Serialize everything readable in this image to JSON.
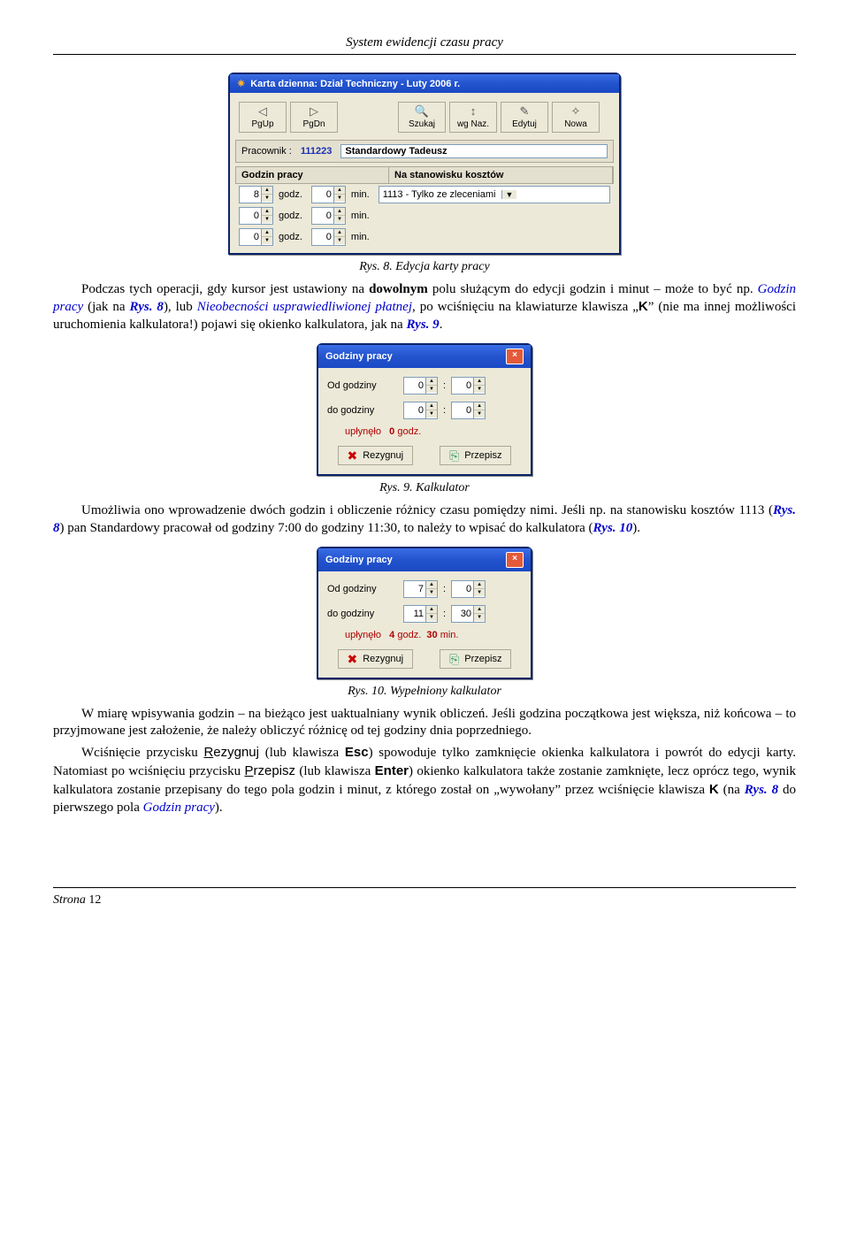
{
  "doc": {
    "header_title": "System ewidencji czasu pracy",
    "footer_label": "Strona",
    "footer_page": "12"
  },
  "fig8": {
    "window_title": "Karta dzienna: Dział Techniczny - Luty 2006 r.",
    "toolbar": [
      {
        "icon": "◁",
        "label": "PgUp"
      },
      {
        "icon": "▷",
        "label": "PgDn"
      },
      {
        "icon": "🔍",
        "label": "Szukaj"
      },
      {
        "icon": "↕",
        "label": "wg Naz."
      },
      {
        "icon": "✎",
        "label": "Edytuj"
      },
      {
        "icon": "✧",
        "label": "Nowa"
      }
    ],
    "worker_label": "Pracownik :",
    "worker_id": "111223",
    "worker_name": "Standardowy Tadeusz",
    "col1": "Godzin pracy",
    "col2": "Na stanowisku kosztów",
    "rows": [
      {
        "h": "8",
        "m": "0",
        "stan": "1113  - Tylko ze zleceniami"
      },
      {
        "h": "0",
        "m": "0",
        "stan": ""
      },
      {
        "h": "0",
        "m": "0",
        "stan": ""
      }
    ],
    "unit_h": "godz.",
    "unit_m": "min.",
    "caption": "Rys. 8. Edycja karty pracy"
  },
  "para1_a": "Podczas tych operacji, gdy kursor jest ustawiony na ",
  "para1_b": "dowolnym",
  "para1_c": " polu służącym do edycji godzin i minut – może to być np. ",
  "para1_d": "Godzin pracy",
  "para1_e": " (jak na ",
  "para1_f": "Rys. 8",
  "para1_g": "), lub ",
  "para1_h": "Nieobecności usprawiedliwionej płatnej",
  "para1_i": ", po wciśnięciu na klawiaturze klawisza „",
  "para1_j": "K",
  "para1_k": "” (nie ma innej możliwości uruchomienia kalkulatora!) pojawi się okienko kalkulatora, jak na ",
  "para1_l": "Rys. 9",
  "para1_m": ".",
  "kal": {
    "title": "Godziny pracy",
    "from_label": "Od godziny",
    "to_label": "do godziny",
    "result_label": "upłynęło",
    "unit_h": "godz.",
    "unit_m": "min.",
    "btn_cancel": "Rezygnuj",
    "btn_ok": "Przepisz"
  },
  "fig9": {
    "from_h": "0",
    "from_m": "0",
    "to_h": "0",
    "to_m": "0",
    "result_h": "0",
    "caption": "Rys. 9. Kalkulator"
  },
  "para2_a": "Umożliwia ono wprowadzenie dwóch godzin i obliczenie różnicy czasu pomiędzy nimi. Jeśli np. na stanowisku kosztów 1113 (",
  "para2_b": "Rys. 8",
  "para2_c": ") pan Standardowy pracował od godziny 7:00 do godziny 11:30, to należy to wpisać do kalkulatora (",
  "para2_d": "Rys. 10",
  "para2_e": ").",
  "fig10": {
    "from_h": "7",
    "from_m": "0",
    "to_h": "11",
    "to_m": "30",
    "result_h": "4",
    "result_m": "30",
    "caption": "Rys. 10. Wypełniony kalkulator"
  },
  "para3": "W miarę wpisywania godzin – na bieżąco jest uaktualniany wynik obliczeń. Jeśli godzina początkowa jest większa, niż końcowa – to przyjmowane jest założenie, że należy obliczyć różnicę od tej godziny dnia poprzedniego.",
  "para4_a": "Wciśnięcie przycisku ",
  "para4_b": "Rezygnuj",
  "para4_c": " (lub klawisza ",
  "para4_d": "Esc",
  "para4_e": ") spowoduje tylko zamknięcie okienka kalkulatora i powrót do edycji karty. Natomiast po wciśnięciu przycisku ",
  "para4_f": "Przepisz",
  "para4_g": " (lub klawisza ",
  "para4_h": "Enter",
  "para4_i": ") okienko kalkulatora także zostanie zamknięte, lecz oprócz tego, wynik kalkulatora zostanie przepisany do tego pola godzin i minut, z którego został on „wywołany” przez wciśnięcie klawisza ",
  "para4_j": "K",
  "para4_k": " (na ",
  "para4_l": "Rys. 8",
  "para4_m": " do pierwszego pola ",
  "para4_n": "Godzin pracy",
  "para4_o": ")."
}
